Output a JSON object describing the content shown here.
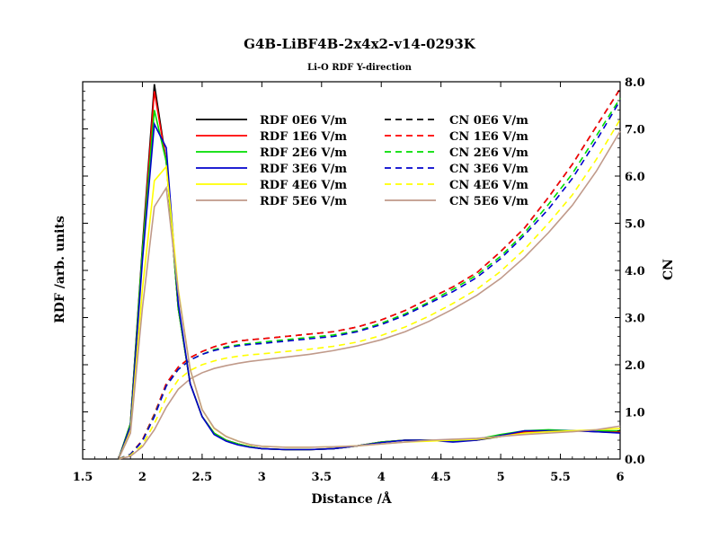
{
  "chart_data": {
    "type": "line",
    "title": "G4B-LiBF4B-2x4x2-v14-0293K",
    "subtitle": "Li-O RDF Y-direction",
    "xlabel": "Distance /Å",
    "ylabel_left": "RDF /arb. units",
    "ylabel_right": "CN",
    "xlim": [
      1.5,
      6
    ],
    "ylim_right": [
      0,
      8
    ],
    "x_ticks": [
      "1.5",
      "2",
      "2.5",
      "3",
      "3.5",
      "4",
      "4.5",
      "5",
      "5.5",
      "6"
    ],
    "y_right_ticks": [
      "0.0",
      "1.0",
      "2.0",
      "3.0",
      "4.0",
      "5.0",
      "6.0",
      "7.0",
      "8.0"
    ],
    "legend_position": "top-left, inside",
    "x": [
      1.8,
      1.9,
      2.0,
      2.1,
      2.2,
      2.3,
      2.4,
      2.5,
      2.6,
      2.7,
      2.8,
      2.9,
      3.0,
      3.2,
      3.4,
      3.6,
      3.8,
      4.0,
      4.2,
      4.4,
      4.6,
      4.8,
      5.0,
      5.2,
      5.4,
      5.6,
      5.8,
      6.0
    ],
    "rdf_series": [
      {
        "name": "RDF 0E6 V/m",
        "color": "#000000",
        "dash": "solid",
        "values": [
          0,
          0.75,
          4.5,
          7.95,
          6.3,
          3.2,
          1.6,
          0.9,
          0.55,
          0.4,
          0.32,
          0.26,
          0.22,
          0.2,
          0.2,
          0.22,
          0.28,
          0.36,
          0.4,
          0.4,
          0.38,
          0.4,
          0.48,
          0.58,
          0.6,
          0.6,
          0.58,
          0.56
        ]
      },
      {
        "name": "RDF 1E6 V/m",
        "color": "#ff0000",
        "dash": "solid",
        "values": [
          0,
          0.75,
          4.4,
          7.8,
          6.3,
          3.2,
          1.6,
          0.9,
          0.55,
          0.4,
          0.32,
          0.26,
          0.22,
          0.2,
          0.2,
          0.22,
          0.28,
          0.36,
          0.4,
          0.4,
          0.38,
          0.42,
          0.5,
          0.58,
          0.6,
          0.6,
          0.6,
          0.58
        ]
      },
      {
        "name": "RDF 2E6 V/m",
        "color": "#00dd00",
        "dash": "solid",
        "values": [
          0,
          0.75,
          4.4,
          7.4,
          6.3,
          3.2,
          1.6,
          0.9,
          0.55,
          0.4,
          0.32,
          0.26,
          0.22,
          0.2,
          0.2,
          0.22,
          0.28,
          0.36,
          0.4,
          0.4,
          0.38,
          0.42,
          0.52,
          0.6,
          0.62,
          0.6,
          0.6,
          0.6
        ]
      },
      {
        "name": "RDF 3E6 V/m",
        "color": "#0000cc",
        "dash": "solid",
        "values": [
          0,
          0.7,
          4.2,
          7.1,
          6.6,
          3.3,
          1.6,
          0.9,
          0.52,
          0.38,
          0.3,
          0.25,
          0.22,
          0.2,
          0.2,
          0.22,
          0.28,
          0.35,
          0.4,
          0.4,
          0.36,
          0.4,
          0.5,
          0.6,
          0.6,
          0.6,
          0.58,
          0.55
        ]
      },
      {
        "name": "RDF 4E6 V/m",
        "color": "#ffff00",
        "dash": "solid",
        "values": [
          0,
          0.6,
          3.6,
          5.9,
          6.2,
          3.6,
          1.9,
          1.05,
          0.65,
          0.48,
          0.38,
          0.3,
          0.27,
          0.25,
          0.25,
          0.26,
          0.28,
          0.32,
          0.36,
          0.38,
          0.4,
          0.42,
          0.48,
          0.55,
          0.58,
          0.6,
          0.62,
          0.65
        ]
      },
      {
        "name": "RDF 5E6 V/m",
        "color": "#c09a8a",
        "dash": "solid",
        "values": [
          0,
          0.55,
          3.2,
          5.35,
          5.75,
          3.55,
          1.9,
          1.05,
          0.66,
          0.48,
          0.38,
          0.31,
          0.27,
          0.25,
          0.25,
          0.26,
          0.28,
          0.32,
          0.36,
          0.4,
          0.42,
          0.44,
          0.48,
          0.52,
          0.55,
          0.58,
          0.62,
          0.7
        ]
      }
    ],
    "cn_series": [
      {
        "name": "CN 0E6 V/m",
        "color": "#000000",
        "dash": "dashed",
        "values": [
          0,
          0.1,
          0.4,
          0.95,
          1.6,
          1.95,
          2.15,
          2.28,
          2.38,
          2.45,
          2.5,
          2.53,
          2.55,
          2.6,
          2.65,
          2.7,
          2.8,
          2.95,
          3.15,
          3.4,
          3.65,
          3.95,
          4.4,
          4.9,
          5.55,
          6.25,
          7.05,
          7.85
        ]
      },
      {
        "name": "CN 1E6 V/m",
        "color": "#ff0000",
        "dash": "dashed",
        "values": [
          0,
          0.1,
          0.4,
          0.95,
          1.6,
          1.95,
          2.15,
          2.28,
          2.38,
          2.45,
          2.5,
          2.53,
          2.55,
          2.6,
          2.65,
          2.7,
          2.8,
          2.95,
          3.15,
          3.4,
          3.65,
          3.95,
          4.4,
          4.9,
          5.55,
          6.25,
          7.05,
          7.85
        ]
      },
      {
        "name": "CN 2E6 V/m",
        "color": "#00dd00",
        "dash": "dashed",
        "values": [
          0,
          0.1,
          0.38,
          0.92,
          1.55,
          1.9,
          2.1,
          2.22,
          2.32,
          2.38,
          2.42,
          2.45,
          2.48,
          2.53,
          2.58,
          2.63,
          2.72,
          2.88,
          3.08,
          3.33,
          3.6,
          3.9,
          4.3,
          4.8,
          5.4,
          6.05,
          6.85,
          7.65
        ]
      },
      {
        "name": "CN 3E6 V/m",
        "color": "#0000cc",
        "dash": "dashed",
        "values": [
          0,
          0.1,
          0.38,
          0.9,
          1.55,
          1.9,
          2.1,
          2.22,
          2.3,
          2.36,
          2.4,
          2.43,
          2.45,
          2.5,
          2.55,
          2.6,
          2.7,
          2.85,
          3.05,
          3.3,
          3.55,
          3.85,
          4.25,
          4.75,
          5.3,
          5.95,
          6.75,
          7.6
        ]
      },
      {
        "name": "CN 4E6 V/m",
        "color": "#ffff00",
        "dash": "dashed",
        "values": [
          0,
          0.08,
          0.3,
          0.75,
          1.3,
          1.68,
          1.88,
          2.0,
          2.08,
          2.14,
          2.18,
          2.21,
          2.23,
          2.28,
          2.33,
          2.39,
          2.48,
          2.62,
          2.8,
          3.03,
          3.3,
          3.6,
          3.98,
          4.45,
          5.0,
          5.6,
          6.35,
          7.2
        ]
      },
      {
        "name": "CN 5E6 V/m",
        "color": "#c09a8a",
        "dash": "solid",
        "values": [
          0,
          0.06,
          0.26,
          0.62,
          1.1,
          1.48,
          1.7,
          1.83,
          1.92,
          1.98,
          2.03,
          2.07,
          2.1,
          2.16,
          2.22,
          2.3,
          2.4,
          2.53,
          2.7,
          2.92,
          3.18,
          3.47,
          3.83,
          4.28,
          4.8,
          5.38,
          6.1,
          6.95
        ]
      }
    ]
  }
}
